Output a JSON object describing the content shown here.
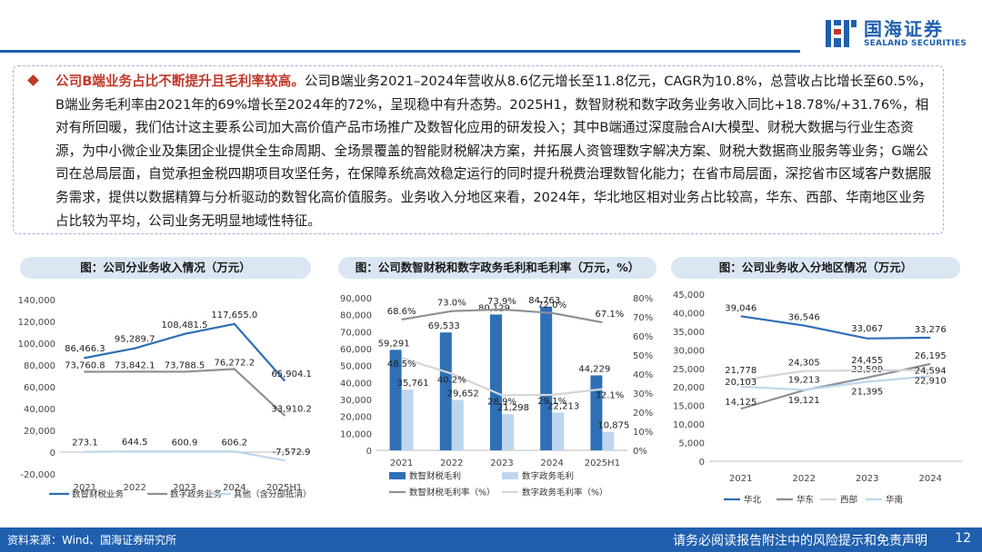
{
  "header": {
    "brand_cn": "国海证券",
    "brand_en": "SEALAND SECURITIES"
  },
  "summary": {
    "highlight": "公司B端业务占比不断提升且毛利率较高。",
    "body": "公司B端业务2021–2024年营收从8.6亿元增长至11.8亿元，CAGR为10.8%，总营收占比增长至60.5%，B端业务毛利率由2021年的69%增长至2024年的72%，呈现稳中有升态势。2025H1，数智财税和数字政务业务收入同比+18.78%/+31.76%，相对有所回暖，我们估计这主要系公司加大高价值产品市场推广及数智化应用的研发投入；其中B端通过深度融合AI大模型、财税大数据与行业生态资源，为中小微企业及集团企业提供全生命周期、全场景覆盖的智能财税解决方案，并拓展人资管理数字解决方案、财税大数据商业服务等业务；G端公司在总局层面，自觉承担金税四期项目攻坚任务，在保障系统高效稳定运行的同时提升税费治理数智化能力；在省市局层面，深挖省市区域客户数据服务需求，提供以数据精算与分析驱动的数智化高价值服务。业务收入分地区来看，2024年，华北地区相对业务占比较高，华东、西部、华南地区业务占比较为平均，公司业务无明显地域性特征。"
  },
  "colors": {
    "brand": "#1f5fae",
    "dark_blue": "#2e6fb5",
    "gray": "#8c9097",
    "light_gray": "#d3d6da",
    "light_blue": "#bdd6ee",
    "red": "#c0392b"
  },
  "footer": {
    "source": "资料来源：Wind、国海证券研究所",
    "disclaimer": "请务必阅读报告附注中的风险提示和免责声明",
    "page": "12"
  },
  "chart_data": [
    {
      "type": "line",
      "title": "图：公司分业务收入情况（万元）",
      "categories": [
        "2021",
        "2022",
        "2023",
        "2024",
        "2025H1"
      ],
      "ylim": [
        -20000,
        140000
      ],
      "yticks": [
        "-20,000",
        "0",
        "20,000",
        "40,000",
        "60,000",
        "80,000",
        "100,000",
        "120,000",
        "140,000"
      ],
      "series": [
        {
          "name": "数智财税业务",
          "values": [
            86466.3,
            95289.7,
            108481.5,
            117655.0,
            65904.1
          ],
          "labels": [
            "86,466.3",
            "95,289.7",
            "108,481.5",
            "117,655.0",
            "65,904.1"
          ],
          "color": "#2e6fb5"
        },
        {
          "name": "数字政务业务",
          "values": [
            73760.8,
            73842.1,
            73788.5,
            76272.2,
            33910.2
          ],
          "labels": [
            "73,760.8",
            "73,842.1",
            "73,788.5",
            "76,272.2",
            "33,910.2"
          ],
          "color": "#8c9097"
        },
        {
          "name": "其他（含分部抵消）",
          "values": [
            273.1,
            644.5,
            600.9,
            606.2,
            -7572.9
          ],
          "labels": [
            "273.1",
            "644.5",
            "600.9",
            "606.2",
            "-7,572.9"
          ],
          "color": "#bdd6ee"
        }
      ],
      "legend": "bottom"
    },
    {
      "type": "bar",
      "title": "图：公司数智财税和数字政务毛利和毛利率（万元，%）",
      "categories": [
        "2021",
        "2022",
        "2023",
        "2024",
        "2025H1"
      ],
      "ylim": [
        0,
        90000
      ],
      "yticks": [
        "0",
        "10,000",
        "20,000",
        "30,000",
        "40,000",
        "50,000",
        "60,000",
        "70,000",
        "80,000",
        "90,000"
      ],
      "y2lim": [
        0,
        80
      ],
      "y2ticks": [
        "0%",
        "10%",
        "20%",
        "30%",
        "40%",
        "50%",
        "60%",
        "70%",
        "80%"
      ],
      "bars": [
        {
          "name": "数智财税毛利",
          "values": [
            59291,
            69533,
            80129,
            84763,
            44229
          ],
          "labels": [
            "59,291",
            "69,533",
            "80,129",
            "84,763",
            "44,229"
          ],
          "color": "#2e6fb5"
        },
        {
          "name": "数字政务毛利",
          "values": [
            35761,
            29652,
            21298,
            22213,
            10875
          ],
          "labels": [
            "35,761",
            "29,652",
            "21,298",
            "22,213",
            "10,875"
          ],
          "color": "#bdd6ee"
        }
      ],
      "lines": [
        {
          "name": "数智财税毛利率（%）",
          "values": [
            68.6,
            73.0,
            73.9,
            72.0,
            67.1
          ],
          "labels": [
            "68.6%",
            "73.0%",
            "73.9%",
            "72.0%",
            "67.1%"
          ],
          "color": "#8c9097"
        },
        {
          "name": "数字政务毛利率（%）",
          "values": [
            48.5,
            40.2,
            28.9,
            29.1,
            32.1
          ],
          "labels": [
            "48.5%",
            "40.2%",
            "28.9%",
            "29.1%",
            "32.1%"
          ],
          "color": "#d3d6da"
        }
      ],
      "legend": "bottom"
    },
    {
      "type": "line",
      "title": "图：公司业务收入分地区情况（万元）",
      "categories": [
        "2021",
        "2022",
        "2023",
        "2024"
      ],
      "ylim": [
        0,
        45000
      ],
      "yticks": [
        "0",
        "5,000",
        "10,000",
        "15,000",
        "20,000",
        "25,000",
        "30,000",
        "35,000",
        "40,000",
        "45,000"
      ],
      "series": [
        {
          "name": "华北",
          "values": [
            39046,
            36546,
            33067,
            33276
          ],
          "labels": [
            "39,046",
            "36,546",
            "33,067",
            "33,276"
          ],
          "color": "#2e6fb5"
        },
        {
          "name": "华东",
          "values": [
            14125,
            19121,
            22509,
            26195
          ],
          "labels": [
            "14,125",
            "19,121",
            "22,509",
            "26,195"
          ],
          "color": "#8c9097"
        },
        {
          "name": "西部",
          "values": [
            21778,
            24305,
            24455,
            24594
          ],
          "labels": [
            "21,778",
            "24,305",
            "24,455",
            "24,594"
          ],
          "color": "#d3d6da"
        },
        {
          "name": "华南",
          "values": [
            20103,
            19213,
            21395,
            22910
          ],
          "labels": [
            "20,103",
            "19,213",
            "21,395",
            "22,910"
          ],
          "color": "#bdd6ee"
        }
      ],
      "legend": "bottom"
    }
  ]
}
